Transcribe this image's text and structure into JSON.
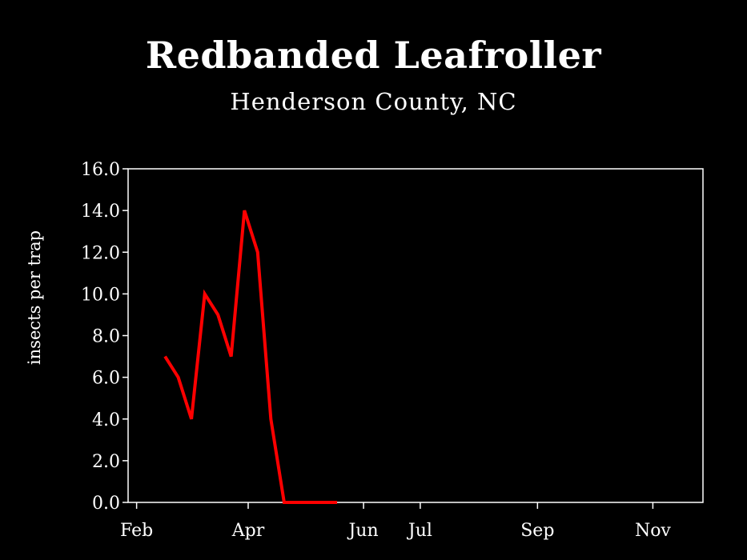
{
  "chart_data": {
    "type": "line",
    "title": "Redbanded Leafroller",
    "subtitle": "Henderson County, NC",
    "xlabel": "",
    "ylabel": "insects per trap",
    "ylim": [
      0,
      16
    ],
    "yticks": [
      "0.0",
      "2.0",
      "4.0",
      "6.0",
      "8.0",
      "10.0",
      "12.0",
      "14.0",
      "16.0"
    ],
    "xticks": [
      "Feb",
      "Apr",
      "Jun",
      "Jul",
      "Sep",
      "Nov"
    ],
    "grid": false,
    "series": [
      {
        "color": "#ff0000",
        "points": [
          {
            "x": "Feb 16",
            "y": 7.0
          },
          {
            "x": "Feb 23",
            "y": 6.0
          },
          {
            "x": "Mar 2",
            "y": 4.0
          },
          {
            "x": "Mar 9",
            "y": 10.0
          },
          {
            "x": "Mar 16",
            "y": 9.0
          },
          {
            "x": "Mar 23",
            "y": 7.0
          },
          {
            "x": "Mar 30",
            "y": 14.0
          },
          {
            "x": "Apr 6",
            "y": 12.0
          },
          {
            "x": "Apr 13",
            "y": 4.0
          },
          {
            "x": "Apr 20",
            "y": 0.0
          },
          {
            "x": "Apr 27",
            "y": 0.0
          },
          {
            "x": "May 4",
            "y": 0.0
          },
          {
            "x": "May 11",
            "y": 0.0
          },
          {
            "x": "May 18",
            "y": 0.0
          }
        ]
      }
    ]
  }
}
